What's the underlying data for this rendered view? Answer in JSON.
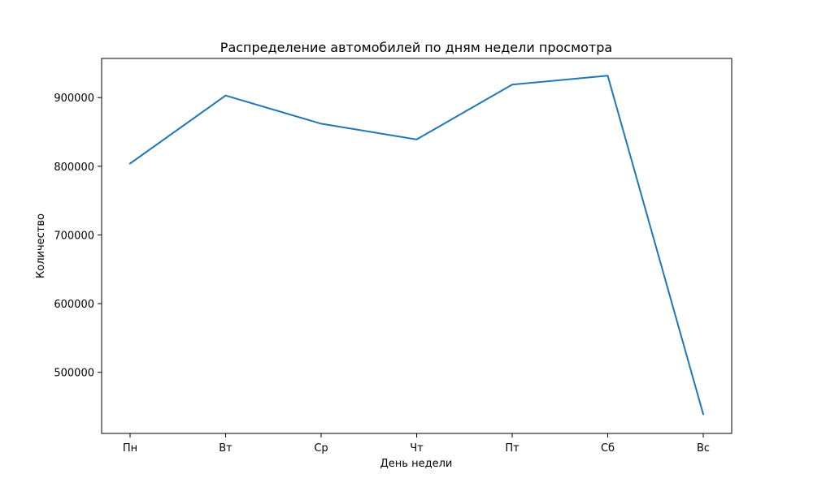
{
  "chart_data": {
    "type": "line",
    "title": "Распределение автомобилей по дням недели просмотра",
    "xlabel": "День недели",
    "ylabel": "Количество",
    "categories": [
      "Пн",
      "Вт",
      "Ср",
      "Чт",
      "Пт",
      "Сб",
      "Вс"
    ],
    "series": [
      {
        "values": [
          804000,
          903000,
          862000,
          839000,
          919000,
          932000,
          439000
        ],
        "color": "#1f77b4"
      }
    ],
    "ylim": [
      411000,
      957000
    ],
    "yticks": [
      500000,
      600000,
      700000,
      800000,
      900000
    ],
    "ytick_labels": [
      "500000",
      "600000",
      "700000",
      "800000",
      "900000"
    ],
    "grid": false,
    "legend": "none"
  }
}
